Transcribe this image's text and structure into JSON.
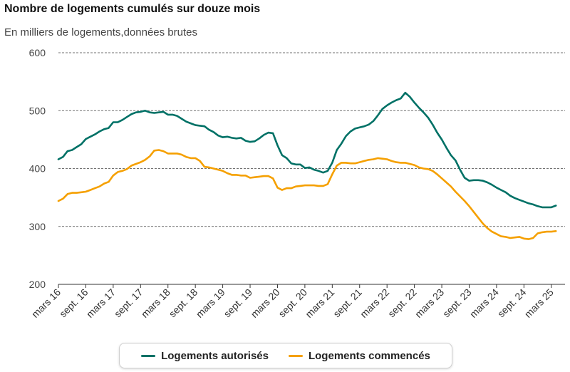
{
  "chart_data": {
    "type": "line",
    "title": "Nombre de logements cumulés sur douze mois",
    "subtitle": "En milliers de logements,données brutes",
    "ylim": [
      200,
      600
    ],
    "yticks": [
      200,
      300,
      400,
      500,
      600
    ],
    "grid": true,
    "legend": "bottom",
    "x_ticks": [
      "mars 16",
      "sept. 16",
      "mars 17",
      "sept. 17",
      "mars 18",
      "sept. 18",
      "mars 19",
      "sept. 19",
      "mars 20",
      "sept. 20",
      "mars 21",
      "sept. 21",
      "mars 22",
      "sept. 22",
      "mars 23",
      "sept. 23",
      "mars 24",
      "sept. 24",
      "mars 25"
    ],
    "x_start": "2016-03",
    "x_end": "2025-03",
    "series": [
      {
        "name": "Logements autorisés",
        "color": "#007166",
        "points": [
          [
            "2016-03",
            416
          ],
          [
            "2016-04",
            420
          ],
          [
            "2016-05",
            430
          ],
          [
            "2016-06",
            432
          ],
          [
            "2016-07",
            437
          ],
          [
            "2016-08",
            442
          ],
          [
            "2016-09",
            451
          ],
          [
            "2016-10",
            455
          ],
          [
            "2016-11",
            459
          ],
          [
            "2016-12",
            464
          ],
          [
            "2017-01",
            468
          ],
          [
            "2017-02",
            470
          ],
          [
            "2017-03",
            480
          ],
          [
            "2017-04",
            480
          ],
          [
            "2017-05",
            484
          ],
          [
            "2017-06",
            489
          ],
          [
            "2017-07",
            494
          ],
          [
            "2017-08",
            497
          ],
          [
            "2017-09",
            498
          ],
          [
            "2017-10",
            500
          ],
          [
            "2017-11",
            497
          ],
          [
            "2017-12",
            496
          ],
          [
            "2018-01",
            497
          ],
          [
            "2018-02",
            498
          ],
          [
            "2018-03",
            493
          ],
          [
            "2018-04",
            493
          ],
          [
            "2018-05",
            491
          ],
          [
            "2018-06",
            486
          ],
          [
            "2018-07",
            481
          ],
          [
            "2018-08",
            478
          ],
          [
            "2018-09",
            475
          ],
          [
            "2018-10",
            474
          ],
          [
            "2018-11",
            473
          ],
          [
            "2018-12",
            467
          ],
          [
            "2019-01",
            463
          ],
          [
            "2019-02",
            457
          ],
          [
            "2019-03",
            454
          ],
          [
            "2019-04",
            455
          ],
          [
            "2019-05",
            453
          ],
          [
            "2019-06",
            452
          ],
          [
            "2019-07",
            453
          ],
          [
            "2019-08",
            448
          ],
          [
            "2019-09",
            446
          ],
          [
            "2019-10",
            447
          ],
          [
            "2019-11",
            452
          ],
          [
            "2019-12",
            458
          ],
          [
            "2020-01",
            462
          ],
          [
            "2020-02",
            461
          ],
          [
            "2020-03",
            440
          ],
          [
            "2020-04",
            423
          ],
          [
            "2020-05",
            418
          ],
          [
            "2020-06",
            409
          ],
          [
            "2020-07",
            407
          ],
          [
            "2020-08",
            407
          ],
          [
            "2020-09",
            401
          ],
          [
            "2020-10",
            402
          ],
          [
            "2020-11",
            398
          ],
          [
            "2020-12",
            396
          ],
          [
            "2021-01",
            393
          ],
          [
            "2021-02",
            396
          ],
          [
            "2021-03",
            410
          ],
          [
            "2021-04",
            432
          ],
          [
            "2021-05",
            443
          ],
          [
            "2021-06",
            456
          ],
          [
            "2021-07",
            464
          ],
          [
            "2021-08",
            469
          ],
          [
            "2021-09",
            471
          ],
          [
            "2021-10",
            473
          ],
          [
            "2021-11",
            476
          ],
          [
            "2021-12",
            482
          ],
          [
            "2022-01",
            492
          ],
          [
            "2022-02",
            503
          ],
          [
            "2022-03",
            509
          ],
          [
            "2022-04",
            514
          ],
          [
            "2022-05",
            518
          ],
          [
            "2022-06",
            521
          ],
          [
            "2022-07",
            531
          ],
          [
            "2022-08",
            524
          ],
          [
            "2022-09",
            514
          ],
          [
            "2022-10",
            505
          ],
          [
            "2022-11",
            497
          ],
          [
            "2022-12",
            488
          ],
          [
            "2023-01",
            476
          ],
          [
            "2023-02",
            462
          ],
          [
            "2023-03",
            450
          ],
          [
            "2023-04",
            436
          ],
          [
            "2023-05",
            423
          ],
          [
            "2023-06",
            414
          ],
          [
            "2023-07",
            398
          ],
          [
            "2023-08",
            384
          ],
          [
            "2023-09",
            379
          ],
          [
            "2023-10",
            380
          ],
          [
            "2023-11",
            380
          ],
          [
            "2023-12",
            379
          ],
          [
            "2024-01",
            376
          ],
          [
            "2024-02",
            372
          ],
          [
            "2024-03",
            367
          ],
          [
            "2024-04",
            363
          ],
          [
            "2024-05",
            359
          ],
          [
            "2024-06",
            353
          ],
          [
            "2024-07",
            349
          ],
          [
            "2024-08",
            346
          ],
          [
            "2024-09",
            343
          ],
          [
            "2024-10",
            340
          ],
          [
            "2024-11",
            338
          ],
          [
            "2024-12",
            335
          ],
          [
            "2025-01",
            333
          ],
          [
            "2025-02",
            333
          ],
          [
            "2025-03",
            333
          ],
          [
            "2025-04",
            336
          ]
        ]
      },
      {
        "name": "Logements commencés",
        "color": "#f5a000",
        "points": [
          [
            "2016-03",
            344
          ],
          [
            "2016-04",
            348
          ],
          [
            "2016-05",
            356
          ],
          [
            "2016-06",
            358
          ],
          [
            "2016-07",
            358
          ],
          [
            "2016-08",
            359
          ],
          [
            "2016-09",
            360
          ],
          [
            "2016-10",
            363
          ],
          [
            "2016-11",
            366
          ],
          [
            "2016-12",
            369
          ],
          [
            "2017-01",
            374
          ],
          [
            "2017-02",
            377
          ],
          [
            "2017-03",
            388
          ],
          [
            "2017-04",
            394
          ],
          [
            "2017-05",
            396
          ],
          [
            "2017-06",
            399
          ],
          [
            "2017-07",
            405
          ],
          [
            "2017-08",
            408
          ],
          [
            "2017-09",
            411
          ],
          [
            "2017-10",
            415
          ],
          [
            "2017-11",
            421
          ],
          [
            "2017-12",
            431
          ],
          [
            "2018-01",
            432
          ],
          [
            "2018-02",
            430
          ],
          [
            "2018-03",
            426
          ],
          [
            "2018-04",
            426
          ],
          [
            "2018-05",
            426
          ],
          [
            "2018-06",
            424
          ],
          [
            "2018-07",
            420
          ],
          [
            "2018-08",
            418
          ],
          [
            "2018-09",
            418
          ],
          [
            "2018-10",
            413
          ],
          [
            "2018-11",
            403
          ],
          [
            "2018-12",
            402
          ],
          [
            "2019-01",
            400
          ],
          [
            "2019-02",
            398
          ],
          [
            "2019-03",
            396
          ],
          [
            "2019-04",
            392
          ],
          [
            "2019-05",
            389
          ],
          [
            "2019-06",
            389
          ],
          [
            "2019-07",
            388
          ],
          [
            "2019-08",
            388
          ],
          [
            "2019-09",
            384
          ],
          [
            "2019-10",
            385
          ],
          [
            "2019-11",
            386
          ],
          [
            "2019-12",
            387
          ],
          [
            "2020-01",
            387
          ],
          [
            "2020-02",
            383
          ],
          [
            "2020-03",
            367
          ],
          [
            "2020-04",
            363
          ],
          [
            "2020-05",
            366
          ],
          [
            "2020-06",
            366
          ],
          [
            "2020-07",
            369
          ],
          [
            "2020-08",
            370
          ],
          [
            "2020-09",
            371
          ],
          [
            "2020-10",
            371
          ],
          [
            "2020-11",
            371
          ],
          [
            "2020-12",
            370
          ],
          [
            "2021-01",
            370
          ],
          [
            "2021-02",
            373
          ],
          [
            "2021-03",
            390
          ],
          [
            "2021-04",
            405
          ],
          [
            "2021-05",
            410
          ],
          [
            "2021-06",
            410
          ],
          [
            "2021-07",
            409
          ],
          [
            "2021-08",
            409
          ],
          [
            "2021-09",
            411
          ],
          [
            "2021-10",
            413
          ],
          [
            "2021-11",
            415
          ],
          [
            "2021-12",
            416
          ],
          [
            "2022-01",
            418
          ],
          [
            "2022-02",
            417
          ],
          [
            "2022-03",
            416
          ],
          [
            "2022-04",
            413
          ],
          [
            "2022-05",
            411
          ],
          [
            "2022-06",
            410
          ],
          [
            "2022-07",
            410
          ],
          [
            "2022-08",
            408
          ],
          [
            "2022-09",
            406
          ],
          [
            "2022-10",
            402
          ],
          [
            "2022-11",
            400
          ],
          [
            "2022-12",
            399
          ],
          [
            "2023-01",
            396
          ],
          [
            "2023-02",
            390
          ],
          [
            "2023-03",
            383
          ],
          [
            "2023-04",
            376
          ],
          [
            "2023-05",
            369
          ],
          [
            "2023-06",
            360
          ],
          [
            "2023-07",
            352
          ],
          [
            "2023-08",
            344
          ],
          [
            "2023-09",
            335
          ],
          [
            "2023-10",
            325
          ],
          [
            "2023-11",
            315
          ],
          [
            "2023-12",
            305
          ],
          [
            "2024-01",
            297
          ],
          [
            "2024-02",
            291
          ],
          [
            "2024-03",
            287
          ],
          [
            "2024-04",
            283
          ],
          [
            "2024-05",
            282
          ],
          [
            "2024-06",
            280
          ],
          [
            "2024-07",
            281
          ],
          [
            "2024-08",
            282
          ],
          [
            "2024-09",
            279
          ],
          [
            "2024-10",
            278
          ],
          [
            "2024-11",
            280
          ],
          [
            "2024-12",
            288
          ],
          [
            "2025-01",
            290
          ],
          [
            "2025-02",
            291
          ],
          [
            "2025-03",
            291
          ],
          [
            "2025-04",
            292
          ]
        ]
      }
    ]
  }
}
